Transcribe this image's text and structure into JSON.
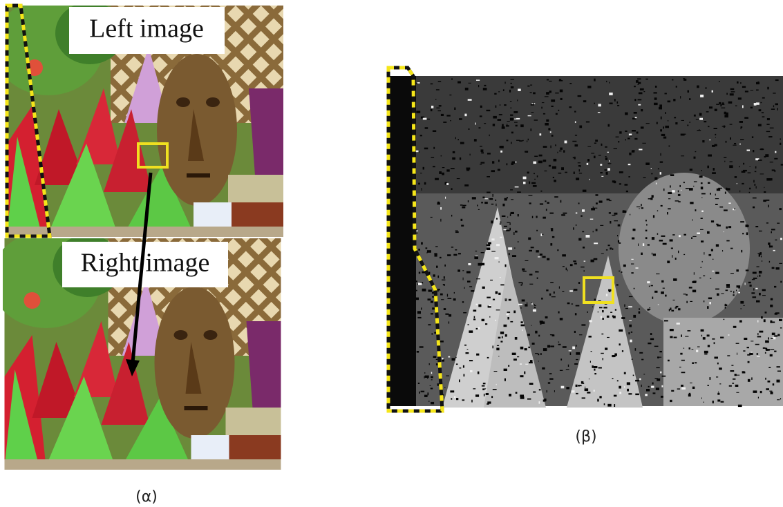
{
  "figure": {
    "panels": [
      {
        "label": "(α)",
        "images": [
          {
            "caption": "Left image"
          },
          {
            "caption": "Right image"
          }
        ]
      },
      {
        "label": "(β)"
      }
    ]
  }
}
